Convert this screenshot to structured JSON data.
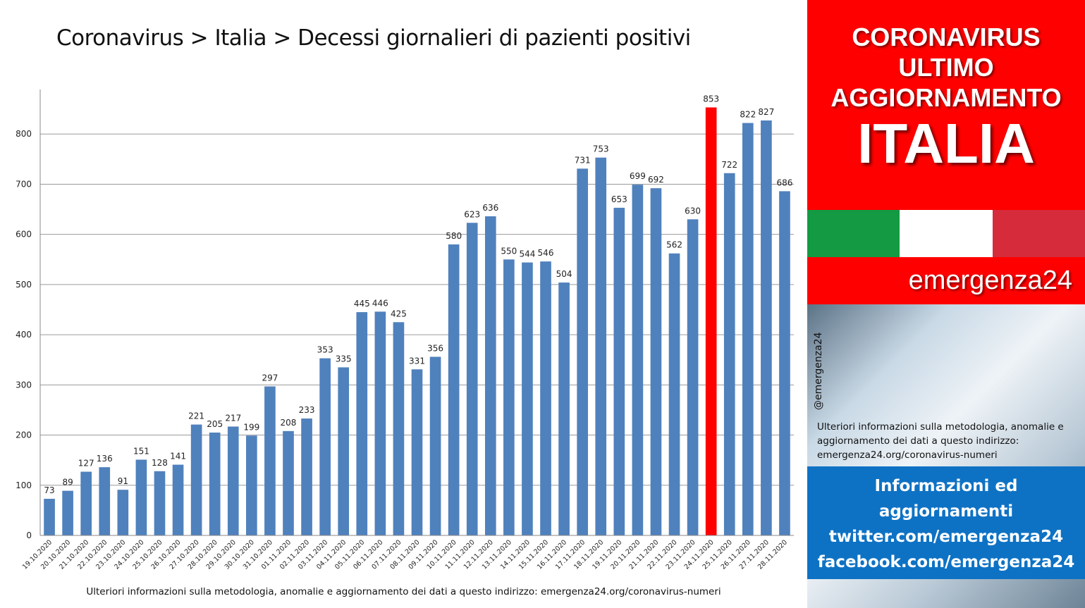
{
  "chart_data": {
    "type": "bar",
    "title": "Coronavirus > Italia > Decessi giornalieri di pazienti positivi",
    "categories": [
      "19.10.2020",
      "20.10.2020",
      "21.10.2020",
      "22.10.2020",
      "23.10.2020",
      "24.10.2020",
      "25.10.2020",
      "26.10.2020",
      "27.10.2020",
      "28.10.2020",
      "29.10.2020",
      "30.10.2020",
      "31.10.2020",
      "01.11.2020",
      "02.11.2020",
      "03.11.2020",
      "04.11.2020",
      "05.11.2020",
      "06.11.2020",
      "07.11.2020",
      "08.11.2020",
      "09.11.2020",
      "10.11.2020",
      "11.11.2020",
      "12.11.2020",
      "13.11.2020",
      "14.11.2020",
      "15.11.2020",
      "16.11.2020",
      "17.11.2020",
      "18.11.2020",
      "19.11.2020",
      "20.11.2020",
      "21.11.2020",
      "22.11.2020",
      "23.11.2020",
      "24.11.2020",
      "25.11.2020",
      "26.11.2020",
      "27.11.2020",
      "28.11.2020"
    ],
    "values": [
      73,
      89,
      127,
      136,
      91,
      151,
      128,
      141,
      221,
      205,
      217,
      199,
      297,
      208,
      233,
      353,
      335,
      445,
      446,
      425,
      331,
      356,
      580,
      623,
      636,
      550,
      544,
      546,
      504,
      731,
      753,
      653,
      699,
      692,
      562,
      630,
      853,
      722,
      822,
      827,
      686
    ],
    "highlight_category": "24.11.2020",
    "bar_color": "#4f81bd",
    "highlight_color": "#ff0000",
    "ylim": [
      0,
      900
    ],
    "yticks": [
      0,
      100,
      200,
      300,
      400,
      500,
      600,
      700,
      800
    ],
    "grid": true,
    "data_labels": true,
    "xlabel": "",
    "ylabel": ""
  },
  "footer_note": "Ulteriori informazioni sulla metodologia, anomalie e aggiornamento dei dati a questo indirizzo: emergenza24.org/coronavirus-numeri",
  "side_panel": {
    "header_line1": "CORONAVIRUS",
    "header_line2": "ULTIMO",
    "header_line3": "AGGIORNAMENTO",
    "country": "ITALIA",
    "brand": "emergenza24",
    "handle": "@emergenza24",
    "note": "Ulteriori informazioni sulla metodologia, anomalie e aggiornamento dei dati a questo indirizzo: emergenza24.org/coronavirus-numeri",
    "info_line1": "Informazioni ed",
    "info_line2": "aggiornamenti",
    "info_line3": "twitter.com/emergenza24",
    "info_line4": "facebook.com/emergenza24",
    "flag_colors": [
      "#139a43",
      "#ffffff",
      "#d52b3a"
    ]
  }
}
